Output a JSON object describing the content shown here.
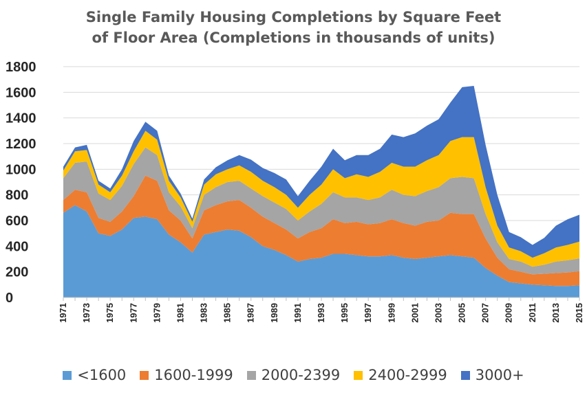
{
  "chart_data": {
    "type": "area",
    "stacked": true,
    "title_lines": [
      "Single Family Housing Completions by Square Feet",
      "of Floor Area (Completions in thousands of units)"
    ],
    "xlabel": "",
    "ylabel": "",
    "ylim": [
      0,
      1800
    ],
    "yticks": [
      0,
      200,
      400,
      600,
      800,
      1000,
      1200,
      1400,
      1600,
      1800
    ],
    "grid": true,
    "legend_position": "bottom",
    "x": [
      1971,
      1972,
      1973,
      1974,
      1975,
      1976,
      1977,
      1978,
      1979,
      1980,
      1981,
      1982,
      1983,
      1984,
      1985,
      1986,
      1987,
      1988,
      1989,
      1990,
      1991,
      1992,
      1993,
      1994,
      1995,
      1996,
      1997,
      1998,
      1999,
      2000,
      2001,
      2002,
      2003,
      2004,
      2005,
      2006,
      2007,
      2008,
      2009,
      2010,
      2011,
      2012,
      2013,
      2014,
      2015
    ],
    "x_tick_labels": [
      "1971",
      "1973",
      "1975",
      "1977",
      "1979",
      "1981",
      "1983",
      "1985",
      "1987",
      "1989",
      "1991",
      "1993",
      "1995",
      "1997",
      "1999",
      "2001",
      "2003",
      "2005",
      "2007",
      "2009",
      "2011",
      "2013",
      "2015"
    ],
    "series": [
      {
        "name": "<1600",
        "color": "#5b9bd5",
        "values": [
          660,
          720,
          670,
          500,
          480,
          530,
          620,
          630,
          610,
          490,
          430,
          350,
          490,
          510,
          530,
          520,
          470,
          400,
          370,
          330,
          280,
          300,
          310,
          340,
          340,
          330,
          320,
          320,
          330,
          310,
          300,
          310,
          320,
          330,
          320,
          310,
          230,
          170,
          120,
          110,
          100,
          95,
          90,
          90,
          95
        ]
      },
      {
        "name": "1600-1999",
        "color": "#ed7d31",
        "values": [
          100,
          120,
          150,
          120,
          110,
          140,
          170,
          320,
          300,
          190,
          170,
          110,
          190,
          210,
          220,
          240,
          230,
          230,
          210,
          200,
          180,
          210,
          230,
          270,
          240,
          260,
          250,
          260,
          280,
          270,
          260,
          280,
          280,
          330,
          330,
          340,
          230,
          140,
          100,
          90,
          80,
          90,
          100,
          105,
          110
        ]
      },
      {
        "name": "2000-2399",
        "color": "#a5a5a5",
        "values": [
          170,
          210,
          240,
          190,
          170,
          200,
          250,
          220,
          200,
          140,
          110,
          80,
          120,
          140,
          150,
          150,
          150,
          160,
          160,
          160,
          140,
          160,
          190,
          210,
          200,
          190,
          190,
          200,
          230,
          220,
          230,
          240,
          260,
          270,
          290,
          280,
          190,
          120,
          80,
          80,
          60,
          70,
          90,
          95,
          100
        ]
      },
      {
        "name": "2400-2999",
        "color": "#ffc000",
        "values": [
          60,
          90,
          90,
          70,
          60,
          80,
          100,
          130,
          120,
          90,
          70,
          50,
          80,
          100,
          100,
          120,
          130,
          120,
          120,
          110,
          100,
          130,
          150,
          180,
          150,
          180,
          180,
          200,
          210,
          220,
          230,
          240,
          250,
          290,
          310,
          320,
          210,
          130,
          90,
          80,
          70,
          90,
          110,
          120,
          130
        ]
      },
      {
        "name": "3000+",
        "color": "#4472c4",
        "values": [
          30,
          30,
          40,
          30,
          30,
          50,
          80,
          70,
          70,
          40,
          30,
          25,
          40,
          55,
          70,
          80,
          95,
          100,
          110,
          120,
          90,
          110,
          140,
          160,
          140,
          150,
          170,
          180,
          220,
          230,
          260,
          270,
          280,
          300,
          390,
          400,
          330,
          240,
          120,
          110,
          100,
          120,
          170,
          200,
          210
        ]
      }
    ]
  }
}
